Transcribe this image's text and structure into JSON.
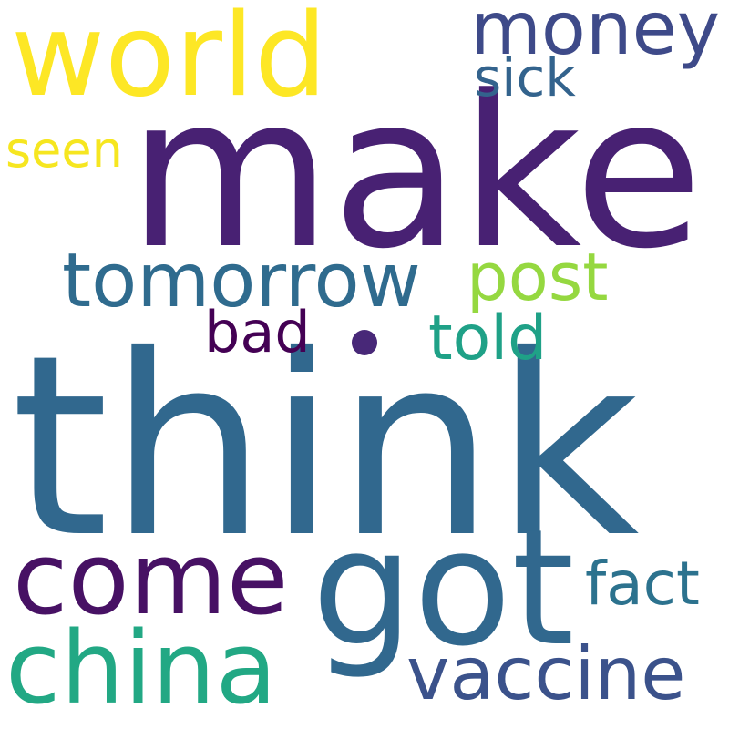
{
  "words": [
    {
      "id": "think",
      "text": "think",
      "color": "#31688e"
    },
    {
      "id": "make",
      "text": "make",
      "color": "#482173"
    },
    {
      "id": "got",
      "text": "got",
      "color": "#31688e"
    },
    {
      "id": "world",
      "text": "world",
      "color": "#fde725"
    },
    {
      "id": "come",
      "text": "come",
      "color": "#471164"
    },
    {
      "id": "china",
      "text": "china",
      "color": "#22a884"
    },
    {
      "id": "tomorrow",
      "text": "tomorrow",
      "color": "#2f6b8e"
    },
    {
      "id": "money",
      "text": "money",
      "color": "#3e4a89"
    },
    {
      "id": "vaccine",
      "text": "vaccine",
      "color": "#3b528b"
    },
    {
      "id": "post",
      "text": "post",
      "color": "#95d840"
    },
    {
      "id": "told",
      "text": "told",
      "color": "#1fa187"
    },
    {
      "id": "fact",
      "text": "fact",
      "color": "#2c728e"
    },
    {
      "id": "bad",
      "text": "bad",
      "color": "#440154"
    },
    {
      "id": "sick",
      "text": "sick",
      "color": "#33638d"
    },
    {
      "id": "seen",
      "text": "seen",
      "color": "#f6e620"
    }
  ],
  "dot_color": "#482878"
}
